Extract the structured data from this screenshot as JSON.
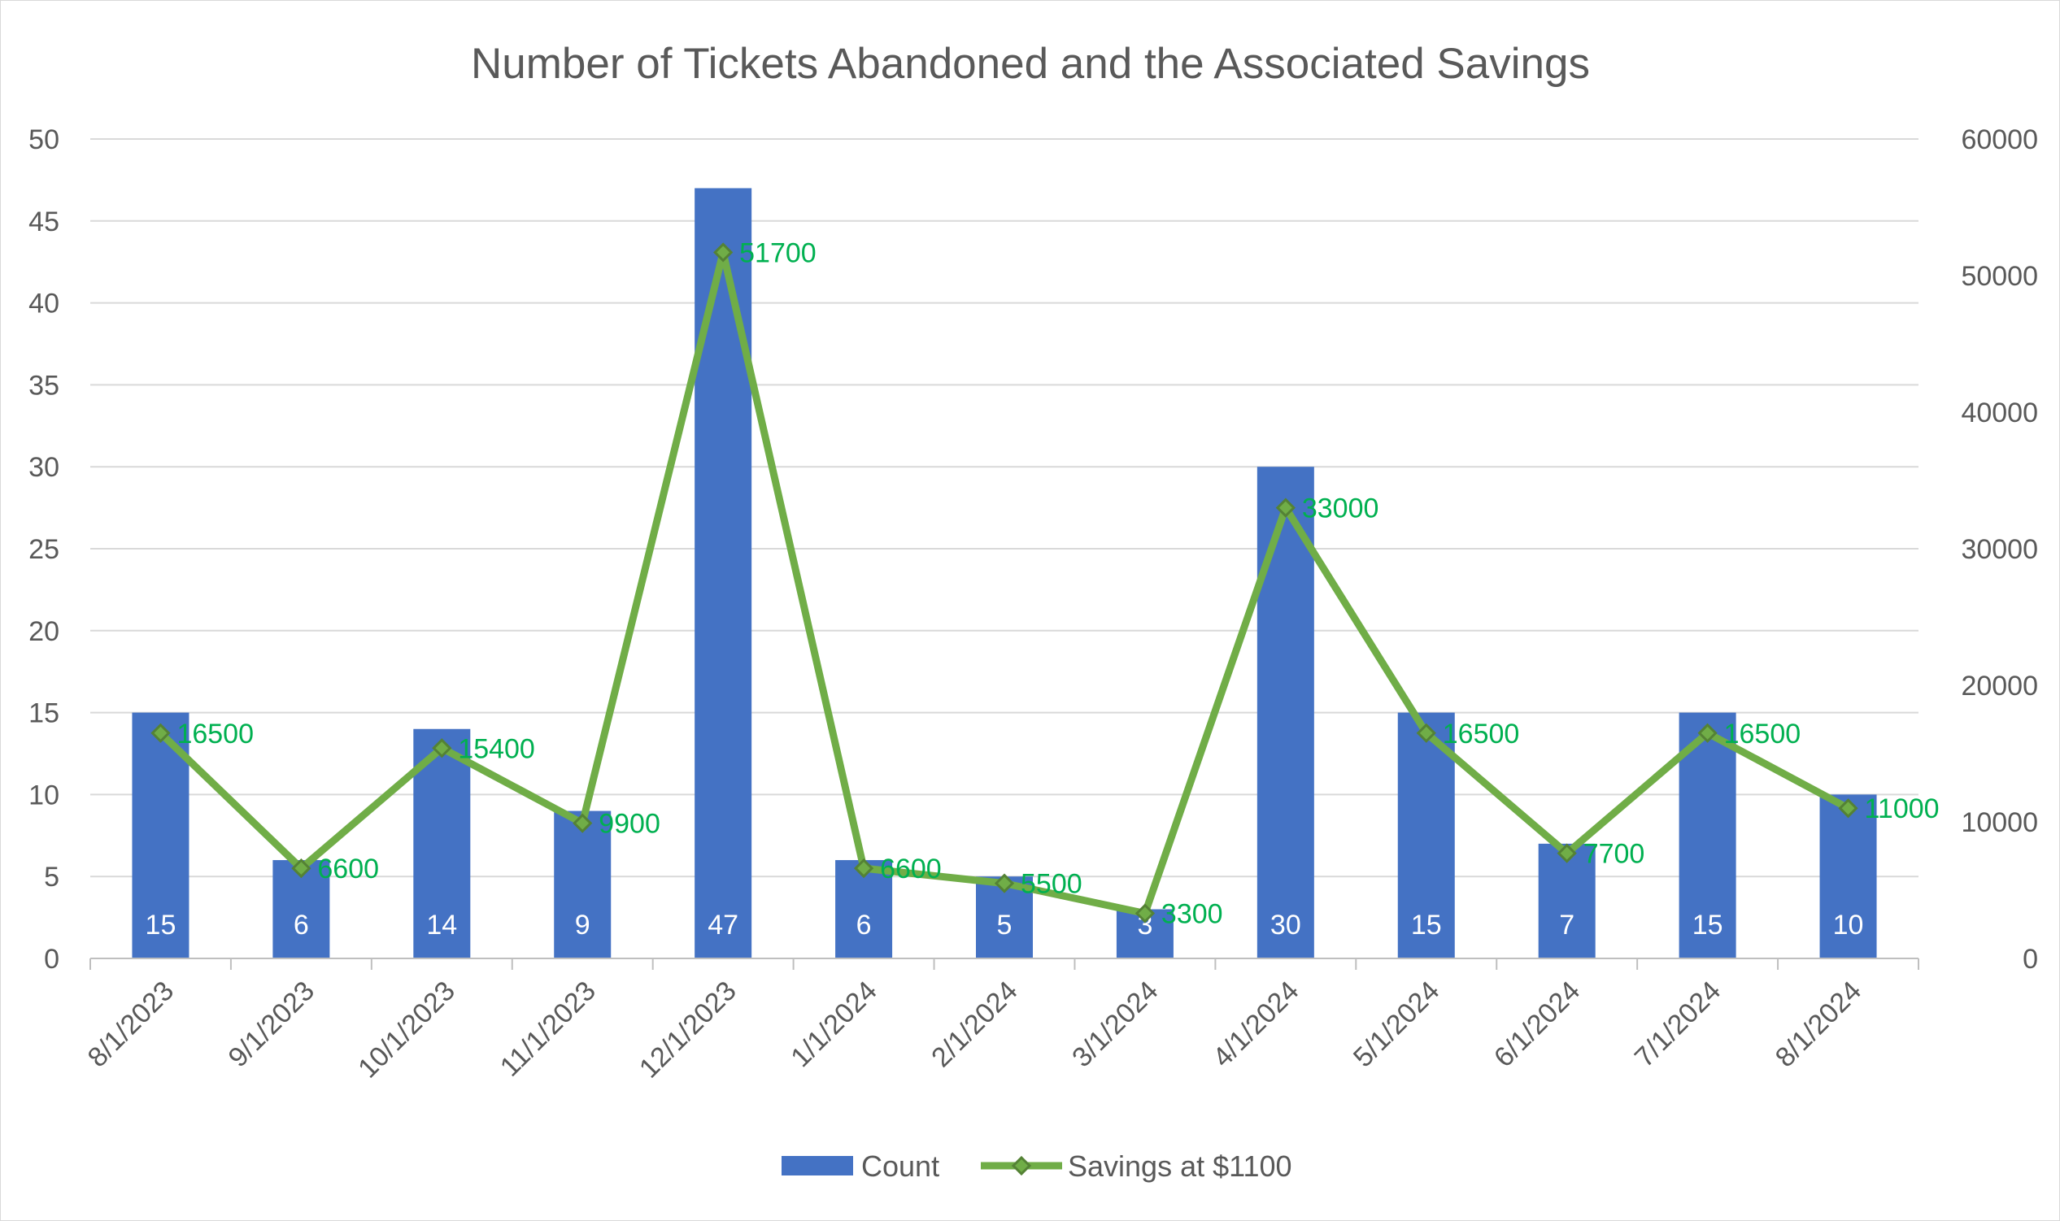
{
  "chart_data": {
    "type": "bar",
    "title": "Number of Tickets Abandoned and the Associated Savings",
    "categories": [
      "8/1/2023",
      "9/1/2023",
      "10/1/2023",
      "11/1/2023",
      "12/1/2023",
      "1/1/2024",
      "2/1/2024",
      "3/1/2024",
      "4/1/2024",
      "5/1/2024",
      "6/1/2024",
      "7/1/2024",
      "8/1/2024"
    ],
    "series": [
      {
        "name": "Count",
        "type": "bar",
        "axis": "left",
        "color": "#4472c4",
        "values": [
          15,
          6,
          14,
          9,
          47,
          6,
          5,
          3,
          30,
          15,
          7,
          15,
          10
        ]
      },
      {
        "name": "Savings at $1100",
        "type": "line",
        "axis": "right",
        "color": "#70ad47",
        "marker_color": "#548235",
        "values": [
          16500,
          6600,
          15400,
          9900,
          51700,
          6600,
          5500,
          3300,
          33000,
          16500,
          7700,
          16500,
          11000
        ]
      }
    ],
    "y_left": {
      "min": 0,
      "max": 50,
      "step": 5,
      "ticks": [
        "0",
        "5",
        "10",
        "15",
        "20",
        "25",
        "30",
        "35",
        "40",
        "45",
        "50"
      ]
    },
    "y_right": {
      "min": 0,
      "max": 60000,
      "step": 10000,
      "ticks": [
        "0",
        "10000",
        "20000",
        "30000",
        "40000",
        "50000",
        "60000"
      ]
    },
    "grid": true,
    "legend_position": "bottom",
    "label_color": "#00b050"
  }
}
